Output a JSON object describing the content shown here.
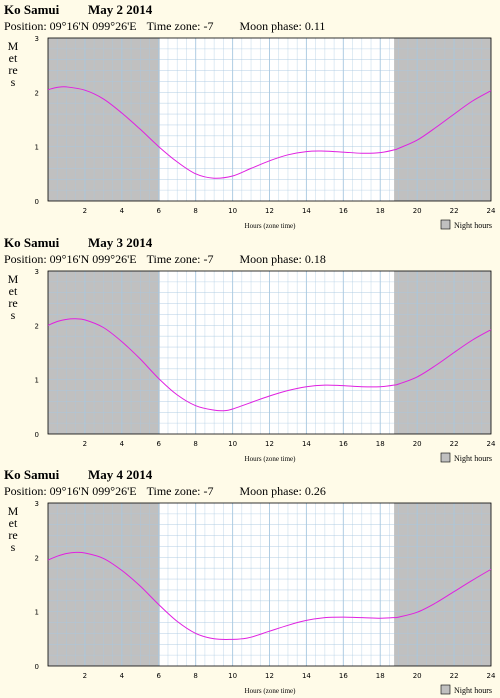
{
  "colors": {
    "background": "#fffbe8",
    "night": "#c0c0c0",
    "grid": "#a8c8e0",
    "curve": "#e020e0"
  },
  "common": {
    "ylabel": "Metres",
    "xlabel": "Hours (zone time)",
    "legend": "Night hours"
  },
  "chart_data": [
    {
      "type": "line",
      "title": "Ko Samui",
      "date": "May 2 2014",
      "position": "Position: 09°16'N 099°26'E",
      "timezone": "Time zone: -7",
      "moon": "Moon phase: 0.11",
      "xlim": [
        0,
        24
      ],
      "ylim": [
        0,
        3
      ],
      "xticks": [
        2,
        4,
        6,
        8,
        10,
        12,
        14,
        16,
        18,
        20,
        22,
        24
      ],
      "yticks": [
        0,
        1,
        2,
        3
      ],
      "night": [
        [
          0,
          6.05
        ],
        [
          18.75,
          24
        ]
      ],
      "x": [
        0,
        0.5,
        1,
        2,
        3,
        4,
        5,
        6,
        7,
        8,
        9,
        10,
        11,
        12,
        13,
        14,
        14.8,
        16,
        17,
        18,
        18.75,
        19,
        20,
        21,
        22,
        23,
        24
      ],
      "y": [
        2.05,
        2.09,
        2.1,
        2.04,
        1.88,
        1.62,
        1.32,
        1.0,
        0.72,
        0.5,
        0.42,
        0.46,
        0.6,
        0.74,
        0.85,
        0.91,
        0.92,
        0.9,
        0.88,
        0.89,
        0.94,
        0.97,
        1.12,
        1.35,
        1.6,
        1.84,
        2.03
      ]
    },
    {
      "type": "line",
      "title": "Ko Samui",
      "date": "May 3 2014",
      "position": "Position: 09°16'N 099°26'E",
      "timezone": "Time zone: -7",
      "moon": "Moon phase: 0.18",
      "xlim": [
        0,
        24
      ],
      "ylim": [
        0,
        3
      ],
      "xticks": [
        2,
        4,
        6,
        8,
        10,
        12,
        14,
        16,
        18,
        20,
        22,
        24
      ],
      "yticks": [
        0,
        1,
        2,
        3
      ],
      "night": [
        [
          0,
          6.05
        ],
        [
          18.75,
          24
        ]
      ],
      "x": [
        0,
        0.5,
        1,
        1.5,
        2,
        3,
        4,
        5,
        6,
        7,
        8,
        9,
        9.6,
        10,
        11,
        12,
        13,
        14,
        15,
        16,
        17,
        18,
        18.75,
        19,
        20,
        21,
        22,
        23,
        24
      ],
      "y": [
        2.0,
        2.07,
        2.11,
        2.12,
        2.1,
        1.96,
        1.7,
        1.38,
        1.02,
        0.72,
        0.52,
        0.44,
        0.43,
        0.46,
        0.58,
        0.7,
        0.8,
        0.87,
        0.9,
        0.89,
        0.87,
        0.87,
        0.9,
        0.92,
        1.05,
        1.26,
        1.5,
        1.73,
        1.92
      ]
    },
    {
      "type": "line",
      "title": "Ko Samui",
      "date": "May 4 2014",
      "position": "Position: 09°16'N 099°26'E",
      "timezone": "Time zone: -7",
      "moon": "Moon phase: 0.26",
      "xlim": [
        0,
        24
      ],
      "ylim": [
        0,
        3
      ],
      "xticks": [
        2,
        4,
        6,
        8,
        10,
        12,
        14,
        16,
        18,
        20,
        22,
        24
      ],
      "yticks": [
        0,
        1,
        2,
        3
      ],
      "night": [
        [
          0,
          6.05
        ],
        [
          18.75,
          24
        ]
      ],
      "x": [
        0,
        0.5,
        1,
        1.5,
        2,
        3,
        4,
        5,
        6,
        7,
        8,
        9,
        10,
        10.5,
        11,
        12,
        13,
        14,
        15,
        16,
        17,
        18,
        18.75,
        19,
        20,
        21,
        22,
        23,
        24
      ],
      "y": [
        1.95,
        2.02,
        2.07,
        2.09,
        2.08,
        1.98,
        1.76,
        1.47,
        1.13,
        0.82,
        0.6,
        0.5,
        0.49,
        0.5,
        0.53,
        0.64,
        0.75,
        0.84,
        0.89,
        0.9,
        0.89,
        0.88,
        0.89,
        0.9,
        0.99,
        1.16,
        1.37,
        1.58,
        1.78
      ]
    }
  ]
}
